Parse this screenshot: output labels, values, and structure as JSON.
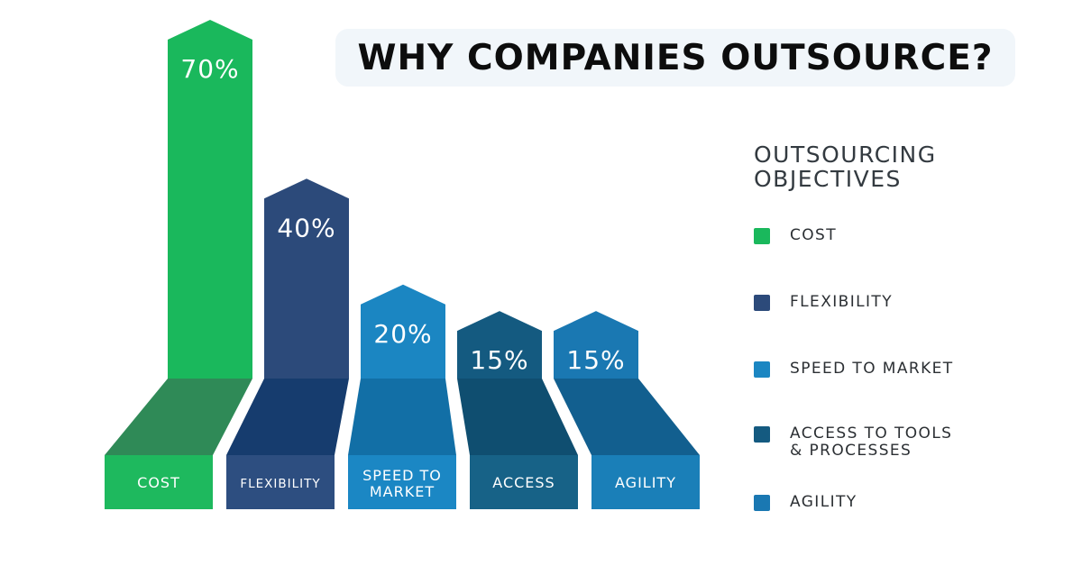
{
  "title": "WHY COMPANIES OUTSOURCE?",
  "legend": {
    "title_line1": "OUTSOURCING",
    "title_line2": "OBJECTIVES",
    "items": [
      {
        "label": "COST",
        "color": "#1ab85c"
      },
      {
        "label": "FLEXIBILITY",
        "color": "#2c4a7a"
      },
      {
        "label": "SPEED TO MARKET",
        "color": "#1b86c2"
      },
      {
        "label": "ACCESS TO TOOLS\n& PROCESSES",
        "color": "#145a80"
      },
      {
        "label": "AGILITY",
        "color": "#1a78b2"
      }
    ]
  },
  "chart_data": {
    "type": "bar",
    "title": "WHY COMPANIES OUTSOURCE?",
    "categories": [
      "COST",
      "FLEXIBILITY",
      "SPEED TO MARKET",
      "ACCESS",
      "AGILITY"
    ],
    "category_lines": [
      [
        "COST"
      ],
      [
        "FLEXIBILITY"
      ],
      [
        "SPEED TO",
        "MARKET"
      ],
      [
        "ACCESS"
      ],
      [
        "AGILITY"
      ]
    ],
    "values": [
      70,
      40,
      20,
      15,
      15
    ],
    "value_labels": [
      "70%",
      "40%",
      "20%",
      "15%",
      "15%"
    ],
    "ylim": [
      0,
      70
    ],
    "colors": {
      "front": [
        "#1ab85c",
        "#2c4a7a",
        "#1b86c2",
        "#145a80",
        "#1a78b2"
      ],
      "floor": [
        "#2f8a57",
        "#163c6e",
        "#126fa6",
        "#0f4e70",
        "#125f8f"
      ],
      "base": [
        "#1eb95e",
        "#2d4e80",
        "#1b87c4",
        "#176287",
        "#1a7fb8"
      ]
    },
    "legend_position": "right",
    "grid": false
  }
}
